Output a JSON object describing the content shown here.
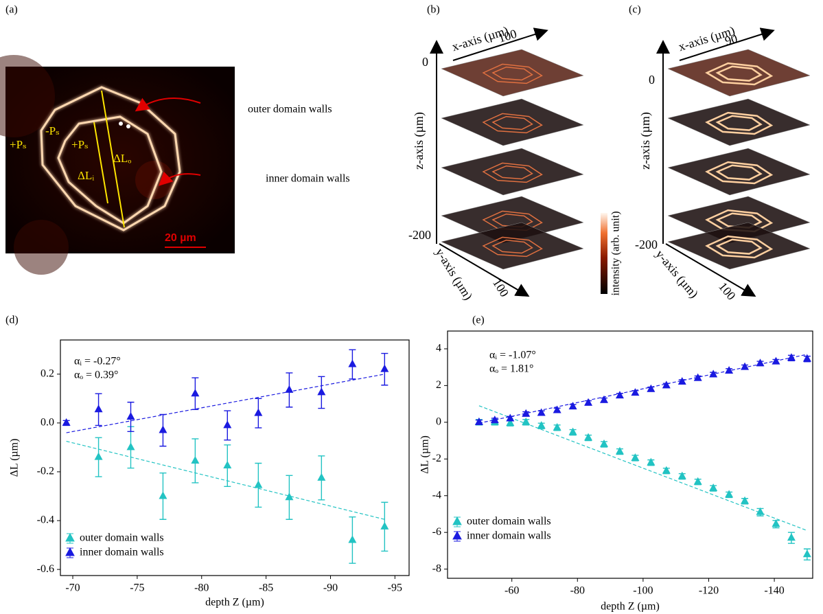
{
  "panels": {
    "a": {
      "label": "(a)",
      "texts": [
        "+Pₛ",
        "-Pₛ",
        "+Pₛ",
        "ΔLₒ",
        "ΔLᵢ"
      ],
      "outer_label": "outer domain walls",
      "inner_label": "inner domain walls",
      "scale_bar": "20 µm"
    },
    "b": {
      "label": "(b)",
      "x_axis": "x-axis (µm)",
      "x_max": "100",
      "z_top": "0",
      "z_axis": "z-axis (µm)",
      "z_bottom": "-200",
      "y_axis": "y-axis (µm)",
      "y_max": "100",
      "colorbar_label": "intensity (arb. unit)"
    },
    "c": {
      "label": "(c)",
      "x_axis": "x-axis (µm)",
      "x_max": "90",
      "z_top": "0",
      "z_axis": "z-axis (µm)",
      "z_bottom": "-200",
      "y_axis": "y-axis (µm)",
      "y_max": "100"
    }
  },
  "chart_data": [
    {
      "type": "scatter",
      "panel_label": "(d)",
      "xlabel": "depth Z (µm)",
      "ylabel": "ΔL (µm)",
      "annotations": [
        "αᵢ = -0.27°",
        "αₒ = 0.39°"
      ],
      "xlim": [
        -69.04,
        -96.1
      ],
      "xticks": [
        -70,
        -75,
        -80,
        -85,
        -90,
        -95
      ],
      "ylim": [
        -0.625,
        0.34
      ],
      "yticks": [
        -0.6,
        -0.4,
        -0.2,
        {
          "value": 0,
          "label": "0.0"
        },
        0.2
      ],
      "series": [
        {
          "name": "outer domain walls",
          "color": "#22c3c3",
          "x": [
            -72,
            -74.5,
            -77,
            -79.5,
            -82,
            -84.4,
            -86.8,
            -89.3,
            -91.7,
            -94.2
          ],
          "values": [
            -0.14,
            -0.1,
            -0.3,
            -0.155,
            -0.175,
            -0.255,
            -0.305,
            -0.225,
            -0.48,
            -0.425
          ],
          "errors": [
            0.08,
            0.085,
            0.095,
            0.09,
            0.085,
            0.09,
            0.09,
            0.09,
            0.095,
            0.1
          ],
          "fit": {
            "x": [
              -69.5,
              -94.2
            ],
            "values": [
              -0.075,
              -0.395
            ]
          }
        },
        {
          "name": "inner domain walls",
          "color": "#1a1ae0",
          "x": [
            -69.5,
            -72,
            -74.5,
            -77,
            -79.5,
            -82,
            -84.4,
            -86.8,
            -89.3,
            -91.7,
            -94.2
          ],
          "values": [
            0.0,
            0.055,
            0.025,
            -0.03,
            0.12,
            -0.01,
            0.04,
            0.135,
            0.125,
            0.24,
            0.22
          ],
          "errors": [
            0.01,
            0.065,
            0.06,
            0.065,
            0.065,
            0.06,
            0.06,
            0.07,
            0.065,
            0.06,
            0.065
          ],
          "fit": {
            "x": [
              -69.5,
              -94.2
            ],
            "values": [
              -0.04,
              0.2
            ]
          }
        }
      ]
    },
    {
      "type": "scatter",
      "panel_label": "(e)",
      "xlabel": "depth Z (µm)",
      "ylabel": "ΔL (µm)",
      "annotations": [
        "αᵢ = -1.07°",
        "αₒ = 1.81°"
      ],
      "xlim": [
        -40.4,
        -151.7
      ],
      "xticks": [
        -60,
        -80,
        -100,
        -120,
        -140
      ],
      "ylim": [
        -8.5,
        4.97
      ],
      "yticks": [
        -8,
        -6,
        -4,
        -2,
        0,
        2,
        4
      ],
      "series": [
        {
          "name": "outer domain walls",
          "color": "#22c3c3",
          "x": [
            -50,
            -54.8,
            -59.5,
            -64.3,
            -69,
            -73.8,
            -78.6,
            -83.3,
            -88.1,
            -92.9,
            -97.6,
            -102.4,
            -107.1,
            -111.9,
            -116.7,
            -121.4,
            -126.2,
            -131,
            -135.7,
            -140.5,
            -145.2,
            -150
          ],
          "values": [
            0,
            0,
            -0.05,
            0,
            -0.2,
            -0.3,
            -0.55,
            -0.85,
            -1.2,
            -1.6,
            -1.95,
            -2.2,
            -2.65,
            -2.95,
            -3.25,
            -3.6,
            -3.95,
            -4.3,
            -4.9,
            -5.55,
            -6.3,
            -7.2
          ],
          "errors": [
            0.15,
            0.15,
            0.15,
            0.15,
            0.15,
            0.15,
            0.15,
            0.15,
            0.15,
            0.15,
            0.15,
            0.15,
            0.15,
            0.15,
            0.15,
            0.15,
            0.15,
            0.15,
            0.2,
            0.2,
            0.3,
            0.3
          ],
          "fit": {
            "x": [
              -50,
              -150
            ],
            "values": [
              0.9,
              -5.9
            ]
          }
        },
        {
          "name": "inner domain walls",
          "color": "#1a1ae0",
          "x": [
            -50,
            -54.8,
            -59.5,
            -64.3,
            -69,
            -73.8,
            -78.6,
            -83.3,
            -88.1,
            -92.9,
            -97.6,
            -102.4,
            -107.1,
            -111.9,
            -116.7,
            -121.4,
            -126.2,
            -131,
            -135.7,
            -140.5,
            -145.2,
            -150
          ],
          "values": [
            0,
            0.1,
            0.2,
            0.45,
            0.5,
            0.65,
            0.85,
            1.05,
            1.2,
            1.45,
            1.6,
            1.8,
            2.0,
            2.2,
            2.4,
            2.6,
            2.8,
            3.0,
            3.2,
            3.3,
            3.5,
            3.45
          ],
          "errors": [
            0.12,
            0.12,
            0.12,
            0.12,
            0.12,
            0.12,
            0.12,
            0.12,
            0.12,
            0.12,
            0.12,
            0.12,
            0.12,
            0.12,
            0.12,
            0.12,
            0.12,
            0.12,
            0.12,
            0.12,
            0.15,
            0.15
          ],
          "fit": {
            "x": [
              -50,
              -150
            ],
            "values": [
              -0.05,
              3.7
            ]
          }
        }
      ]
    }
  ]
}
